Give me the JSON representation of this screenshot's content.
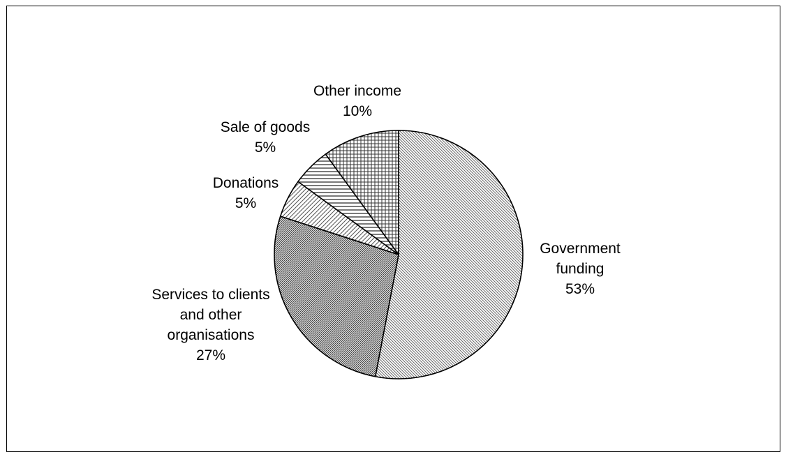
{
  "chart_data": {
    "type": "pie",
    "title": "",
    "start_angle_deg": 0,
    "direction": "clockwise",
    "legend": "none",
    "slices": [
      {
        "name": "Government funding",
        "value": 53,
        "label_lines": [
          "Government",
          "funding",
          "53%"
        ],
        "pattern": "diag-fine"
      },
      {
        "name": "Services to clients and other organisations",
        "value": 27,
        "label_lines": [
          "Services to clients",
          "and other",
          "organisations",
          "27%"
        ],
        "pattern": "diag-dense"
      },
      {
        "name": "Donations",
        "value": 5,
        "label_lines": [
          "Donations",
          "5%"
        ],
        "pattern": "diag-wide"
      },
      {
        "name": "Sale of goods",
        "value": 5,
        "label_lines": [
          "Sale of goods",
          "5%"
        ],
        "pattern": "horizontal"
      },
      {
        "name": "Other income",
        "value": 10,
        "label_lines": [
          "Other income",
          "10%"
        ],
        "pattern": "grid"
      }
    ]
  }
}
